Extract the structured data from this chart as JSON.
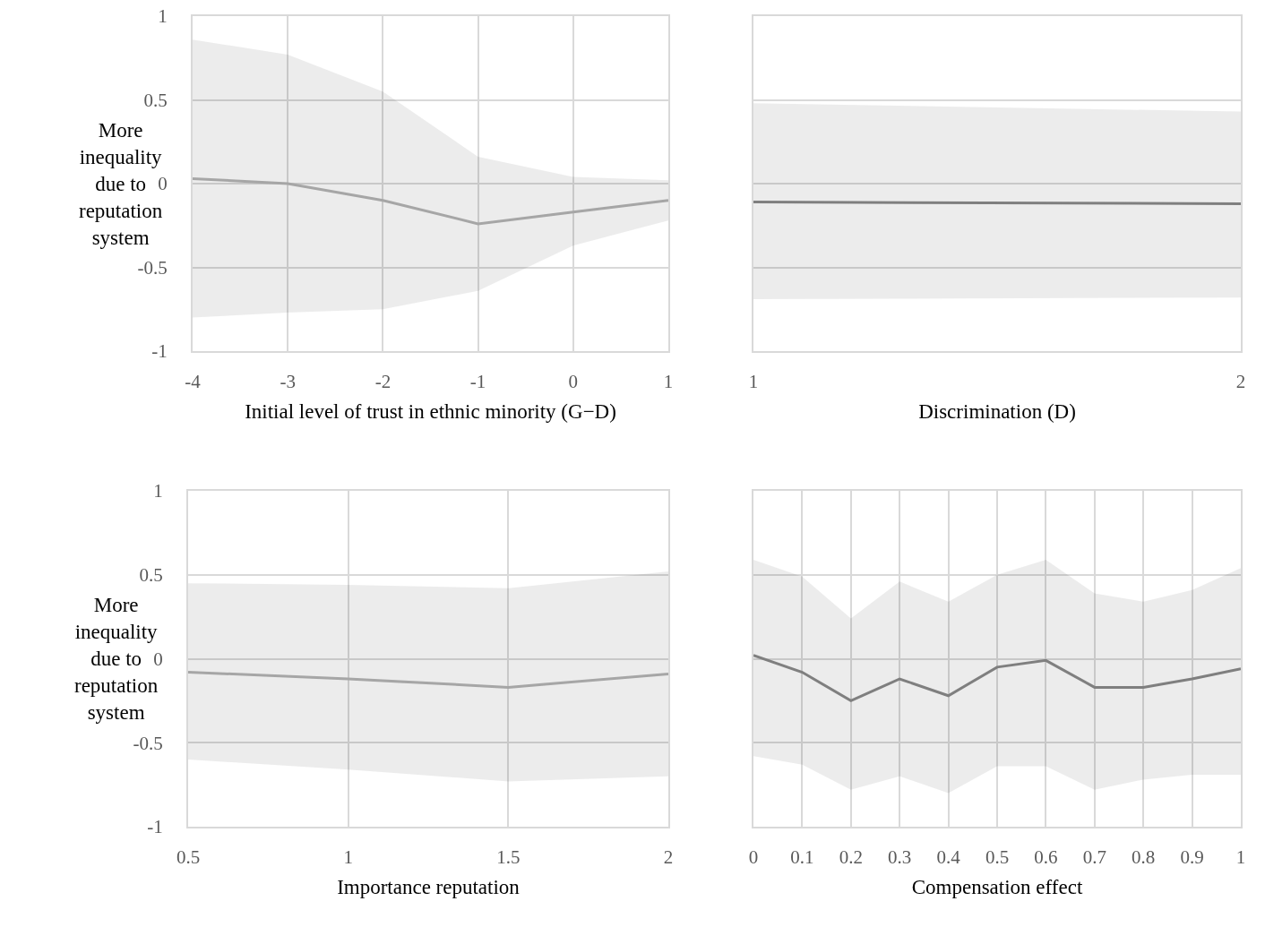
{
  "chart_data": [
    {
      "type": "line",
      "xlabel": "Initial level of trust in ethnic minority (G−D)",
      "ylabel": "More inequality due to reputation system",
      "x": [
        -4,
        -3,
        -2,
        -1,
        0,
        1
      ],
      "xlim": [
        -4,
        1
      ],
      "xticks": [
        -4,
        -3,
        -2,
        -1,
        0,
        1
      ],
      "ylim": [
        -1,
        1
      ],
      "yticks": [
        -1,
        -0.5,
        0,
        0.5,
        1
      ],
      "grid": true,
      "series": [
        {
          "color": "#a6a6a6",
          "values": [
            0.03,
            0,
            -0.1,
            -0.24,
            -0.17,
            -0.1
          ],
          "lower": [
            -0.8,
            -0.77,
            -0.75,
            -0.64,
            -0.37,
            -0.22
          ],
          "upper": [
            0.86,
            0.77,
            0.55,
            0.16,
            0.04,
            0.02
          ]
        }
      ]
    },
    {
      "type": "line",
      "xlabel": "Discrimination (D)",
      "x": [
        1,
        2
      ],
      "xlim": [
        1,
        2
      ],
      "xticks": [
        1,
        2
      ],
      "ylim": [
        -1,
        1
      ],
      "yticks": [
        -1,
        -0.5,
        0,
        0.5,
        1
      ],
      "tick_labels": "x",
      "grid": true,
      "series": [
        {
          "color": "#7f7f7f",
          "values": [
            -0.11,
            -0.12
          ],
          "lower": [
            -0.69,
            -0.68
          ],
          "upper": [
            0.48,
            0.43
          ]
        }
      ]
    },
    {
      "type": "line",
      "xlabel": "Importance reputation",
      "ylabel": "More inequality due to reputation system",
      "x": [
        0.5,
        1,
        1.5,
        2
      ],
      "xlim": [
        0.5,
        2
      ],
      "xticks": [
        0.5,
        1,
        1.5,
        2
      ],
      "ylim": [
        -1,
        1
      ],
      "yticks": [
        -1,
        -0.5,
        0,
        0.5,
        1
      ],
      "grid": true,
      "series": [
        {
          "color": "#a6a6a6",
          "values": [
            -0.08,
            -0.12,
            -0.17,
            -0.09
          ],
          "lower": [
            -0.6,
            -0.66,
            -0.73,
            -0.7
          ],
          "upper": [
            0.45,
            0.44,
            0.42,
            0.52
          ]
        }
      ]
    },
    {
      "type": "line",
      "xlabel": "Compensation effect",
      "x": [
        0,
        0.1,
        0.2,
        0.3,
        0.4,
        0.5,
        0.6,
        0.7,
        0.8,
        0.9,
        1
      ],
      "xlim": [
        0,
        1
      ],
      "xticks": [
        0,
        0.1,
        0.2,
        0.3,
        0.4,
        0.5,
        0.6,
        0.7,
        0.8,
        0.9,
        1
      ],
      "ylim": [
        -1,
        1
      ],
      "yticks": [
        -1,
        -0.5,
        0,
        0.5,
        1
      ],
      "tick_labels": "x",
      "grid": true,
      "series": [
        {
          "color": "#7f7f7f",
          "values": [
            0.02,
            -0.08,
            -0.25,
            -0.12,
            -0.22,
            -0.05,
            -0.01,
            -0.17,
            -0.17,
            -0.12,
            -0.06
          ],
          "lower": [
            -0.58,
            -0.63,
            -0.78,
            -0.7,
            -0.8,
            -0.64,
            -0.64,
            -0.78,
            -0.72,
            -0.69,
            -0.69
          ],
          "upper": [
            0.59,
            0.49,
            0.24,
            0.46,
            0.34,
            0.5,
            0.59,
            0.39,
            0.34,
            0.41,
            0.54
          ]
        }
      ]
    }
  ]
}
